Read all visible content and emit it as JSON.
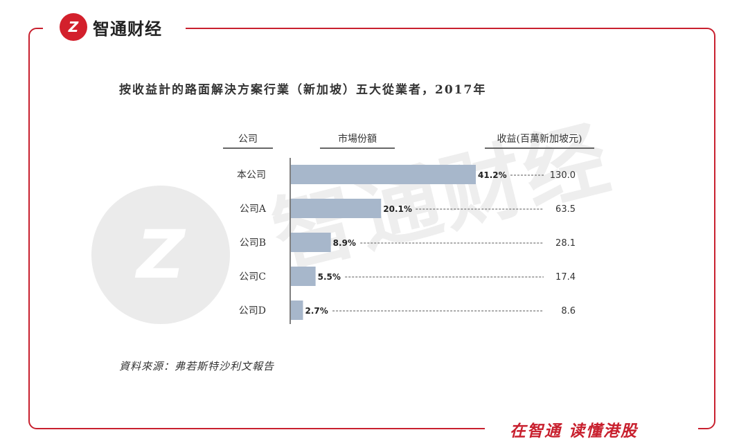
{
  "brand": {
    "name": "智通财经",
    "slogan": "在智通 读懂港股"
  },
  "watermark": {
    "text": "智通财经"
  },
  "colors": {
    "frame": "#c8202e",
    "bar": "#a7b7cb",
    "text": "#333333"
  },
  "chart_data": {
    "type": "bar",
    "orientation": "horizontal",
    "title": "按收益計的路面解決方案行業（新加坡）五大從業者，2017年",
    "column_headers": {
      "company": "公司",
      "share": "市場份額",
      "revenue": "收益(百萬新加坡元)"
    },
    "categories": [
      "本公司",
      "公司A",
      "公司B",
      "公司C",
      "公司D"
    ],
    "values": [
      41.2,
      20.1,
      8.9,
      5.5,
      2.7
    ],
    "value_labels": [
      "41.2%",
      "20.1%",
      "8.9%",
      "5.5%",
      "2.7%"
    ],
    "revenue": [
      "130.0",
      "63.5",
      "28.1",
      "17.4",
      "8.6"
    ],
    "unit": "%",
    "grid": false,
    "source": "資料來源：弗若斯特沙利文報告"
  }
}
